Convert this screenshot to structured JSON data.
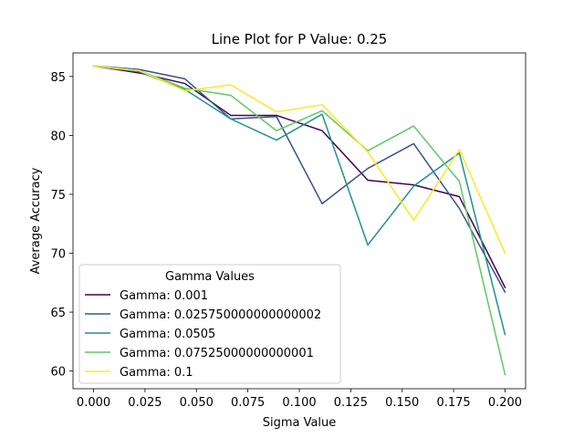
{
  "chart_data": {
    "type": "line",
    "title": "Line Plot for P Value: 0.25",
    "xlabel": "Sigma Value",
    "ylabel": "Average Accuracy",
    "xlim": [
      -0.01,
      0.21
    ],
    "ylim": [
      58.5,
      87.0
    ],
    "xticks": [
      0.0,
      0.025,
      0.05,
      0.075,
      0.1,
      0.125,
      0.15,
      0.175,
      0.2
    ],
    "xtick_labels": [
      "0.000",
      "0.025",
      "0.050",
      "0.075",
      "0.100",
      "0.125",
      "0.150",
      "0.175",
      "0.200"
    ],
    "yticks": [
      60,
      65,
      70,
      75,
      80,
      85
    ],
    "ytick_labels": [
      "60",
      "65",
      "70",
      "75",
      "80",
      "85"
    ],
    "x": [
      0.0,
      0.0222,
      0.0444,
      0.0667,
      0.0889,
      0.1111,
      0.1333,
      0.1556,
      0.1778,
      0.2
    ],
    "series": [
      {
        "name": "Gamma: 0.001",
        "color": "#440154",
        "values": [
          85.9,
          85.3,
          84.4,
          81.7,
          81.7,
          80.4,
          76.2,
          75.8,
          74.8,
          67.1
        ]
      },
      {
        "name": "Gamma: 0.025750000000000002",
        "color": "#3b528b",
        "values": [
          85.9,
          85.6,
          84.8,
          81.4,
          81.6,
          74.2,
          77.2,
          79.3,
          73.8,
          66.7
        ]
      },
      {
        "name": "Gamma: 0.0505",
        "color": "#21918c",
        "values": [
          85.9,
          85.4,
          83.9,
          81.4,
          79.6,
          81.8,
          70.7,
          75.7,
          78.5,
          63.1
        ]
      },
      {
        "name": "Gamma: 0.07525000000000001",
        "color": "#5ec962",
        "values": [
          85.9,
          85.5,
          84.0,
          83.4,
          80.4,
          82.1,
          78.7,
          80.8,
          76.1,
          59.7
        ]
      },
      {
        "name": "Gamma: 0.1",
        "color": "#fde725",
        "values": [
          85.9,
          85.5,
          83.8,
          84.3,
          82.0,
          82.6,
          78.6,
          72.8,
          78.8,
          70.0
        ]
      }
    ],
    "legend": {
      "title": "Gamma Values",
      "placement": "lower-left"
    },
    "grid": false
  }
}
